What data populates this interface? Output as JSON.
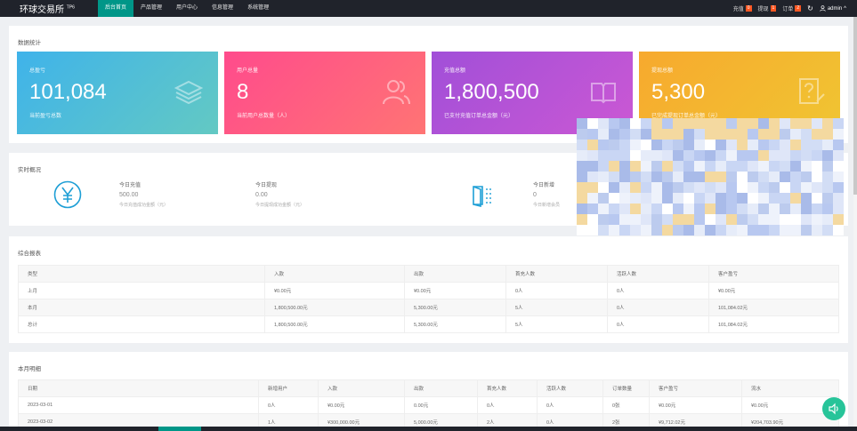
{
  "header": {
    "brand": "环球交易所",
    "brand_sup": "TP6",
    "nav": [
      "后台首页",
      "产品管理",
      "用户中心",
      "信息管理",
      "系统管理"
    ],
    "right": {
      "recharge_label": "充值",
      "recharge_count": "0",
      "withdraw_label": "提现",
      "withdraw_count": "1",
      "order_label": "订单",
      "order_count": "2",
      "admin_label": "admin"
    }
  },
  "stats": {
    "title": "数据统计",
    "cards": [
      {
        "label": "总盈亏",
        "value": "101,084",
        "sub": "当前盈亏总数",
        "color_from": "#40b6e8",
        "color_to": "#5fc8c6",
        "icon": "layers-icon"
      },
      {
        "label": "用户总量",
        "value": "8",
        "sub": "当前用户总数量（人）",
        "color_from": "#ff4f8b",
        "color_to": "#ff6f73",
        "icon": "users-icon"
      },
      {
        "label": "充值总额",
        "value": "1,800,500",
        "sub": "已支付充值订单总金额（元）",
        "color_from": "#a44fd6",
        "color_to": "#c856d6",
        "icon": "book-icon"
      },
      {
        "label": "提现总额",
        "value": "5,300",
        "sub": "已完成提现订单总金额（元）",
        "color_from": "#f6ab2f",
        "color_to": "#f1c030",
        "icon": "question-doc-icon"
      }
    ]
  },
  "realtime": {
    "title": "实时概况",
    "items": [
      {
        "label": "今日充值",
        "value": "500.00",
        "sub": "今日充值成功金额（元）"
      },
      {
        "label": "今日提现",
        "value": "0.00",
        "sub": "今日提现成功金额（元）"
      },
      {
        "label": "今日新增",
        "value": "0",
        "sub": "今日新增会员"
      }
    ]
  },
  "summary": {
    "title": "综合报表",
    "headers": [
      "类型",
      "入款",
      "出款",
      "首充人数",
      "活跃人数",
      "客户盈亏"
    ],
    "rows": [
      [
        "上月",
        "¥0.00元",
        "¥0.00元",
        "0人",
        "0人",
        "¥0.00元"
      ],
      [
        "本月",
        "1,800,500.00元",
        "5,300.00元",
        "5人",
        "0人",
        "101,084.02元"
      ],
      [
        "总计",
        "1,800,500.00元",
        "5,300.00元",
        "5人",
        "0人",
        "101,084.02元"
      ]
    ]
  },
  "monthly": {
    "title": "本月明细",
    "headers": [
      "日期",
      "新增用户",
      "入款",
      "出款",
      "首充人数",
      "活跃人数",
      "订单数量",
      "客户盈亏",
      "流水"
    ],
    "rows": [
      [
        "2023-03-01",
        "0人",
        "¥0.00元",
        "0.00元",
        "0人",
        "0人",
        "0张",
        "¥0.00元",
        "¥0.00元"
      ],
      [
        "2023-03-02",
        "1人",
        "¥300,000.00元",
        "5,000.00元",
        "2人",
        "0人",
        "2张",
        "¥9,712.02元",
        "¥204,703.90元"
      ]
    ]
  }
}
